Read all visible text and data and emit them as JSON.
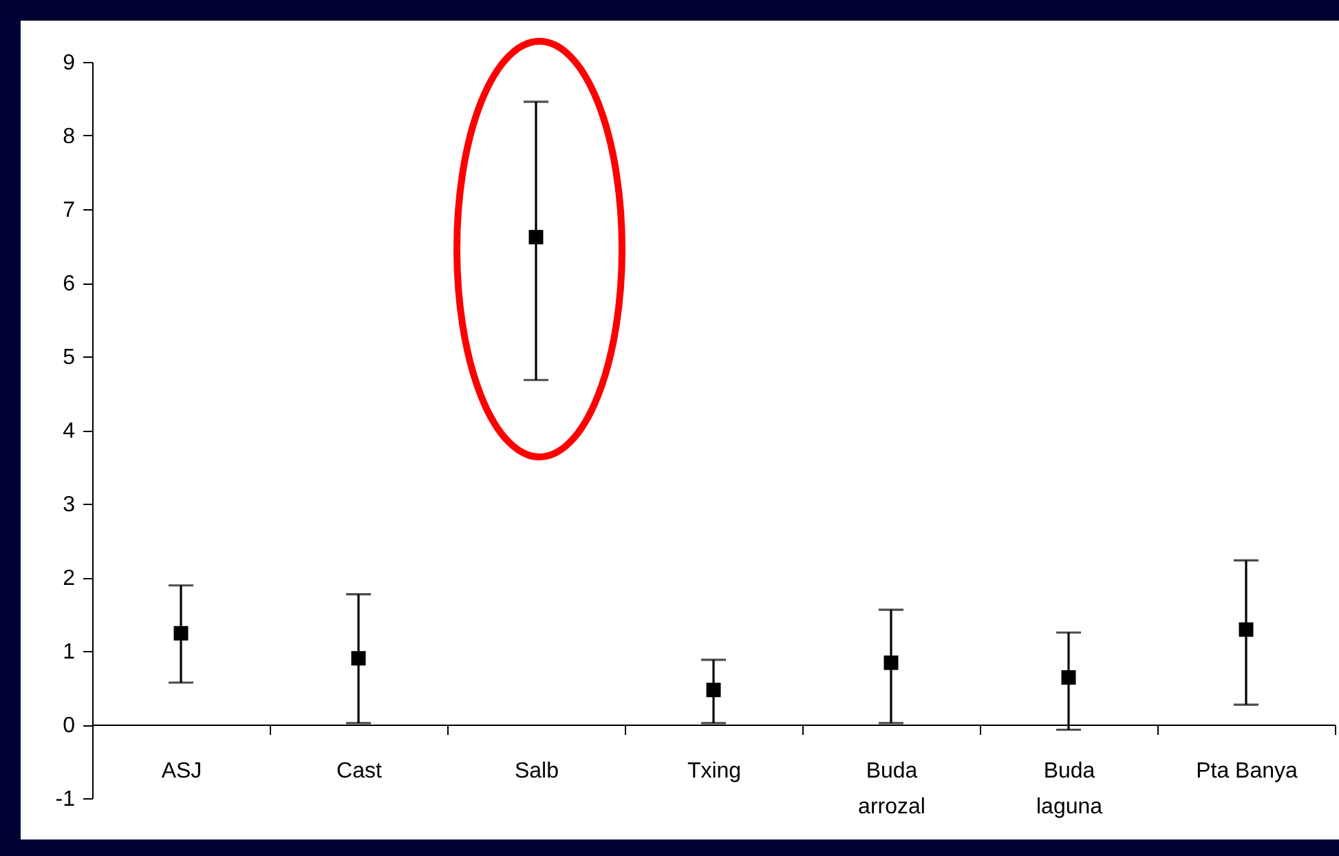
{
  "chart_data": {
    "type": "scatter",
    "categories": [
      "ASJ",
      "Cast",
      "Salb",
      "Txing",
      "Buda arrozal",
      "Buda laguna",
      "Pta Banya"
    ],
    "series": [
      {
        "color": "#000000",
        "values": [
          1.24,
          0.9,
          6.62,
          0.47,
          0.84,
          0.64,
          1.29
        ],
        "errors": [
          [
            0.57,
            1.89
          ],
          [
            0.02,
            1.77
          ],
          [
            4.68,
            8.46
          ],
          [
            0.02,
            0.88
          ],
          [
            0.02,
            1.56
          ],
          [
            -0.07,
            1.25
          ],
          [
            0.27,
            2.23
          ]
        ]
      }
    ],
    "ylim": [
      -1,
      9
    ],
    "yticks": [
      -1,
      0,
      1,
      2,
      3,
      4,
      5,
      6,
      7,
      8,
      9
    ],
    "marker": "square",
    "grid": false
  }
}
